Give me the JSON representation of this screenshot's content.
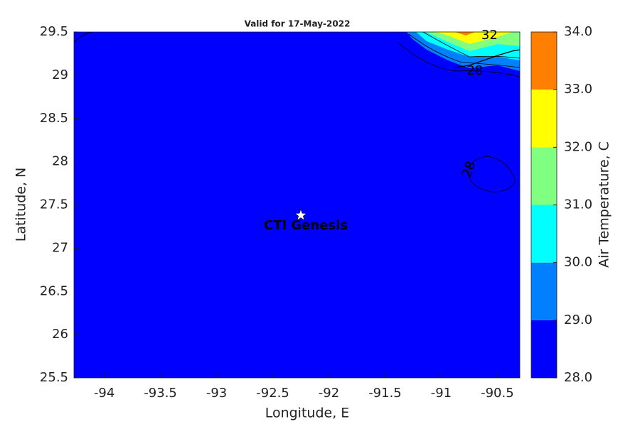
{
  "map": {
    "title": "Valid for 17-May-2022",
    "xlabel": "Longitude, E",
    "ylabel": "Latitude, N",
    "xlim": [
      -94.27,
      -90.3
    ],
    "ylim": [
      25.5,
      29.5
    ],
    "xticks": [
      -94,
      -93.5,
      -93,
      -92.5,
      -92,
      -91.5,
      -91,
      -90.5
    ],
    "yticks": [
      25.5,
      26,
      26.5,
      27,
      27.5,
      28,
      28.5,
      29,
      29.5
    ],
    "fill_color": "#0000ff",
    "station": {
      "name": "CTI Genesis",
      "lon": -92.25,
      "lat": 27.38
    },
    "contour_labels": [
      {
        "text": "28",
        "lon": -90.7,
        "lat": 29.05,
        "angle": 0
      },
      {
        "text": "28",
        "lon": -90.75,
        "lat": 27.91,
        "angle": -70
      },
      {
        "text": "32",
        "lon": -90.57,
        "lat": 29.46,
        "angle": 0
      }
    ],
    "colorbar": {
      "label": "Air Temperature, C",
      "lim": [
        28,
        34
      ],
      "ticks": [
        {
          "value": 28,
          "label": "28.0"
        },
        {
          "value": 29,
          "label": "29.0"
        },
        {
          "value": 30,
          "label": "30.0"
        },
        {
          "value": 31,
          "label": "31.0"
        },
        {
          "value": 32,
          "label": "32.0"
        },
        {
          "value": 33,
          "label": "33.0"
        },
        {
          "value": 34,
          "label": "34.0"
        }
      ],
      "colors": [
        "#0000ff",
        "#0080ff",
        "#00ffff",
        "#80ff80",
        "#ffff00",
        "#ff8000"
      ]
    }
  }
}
